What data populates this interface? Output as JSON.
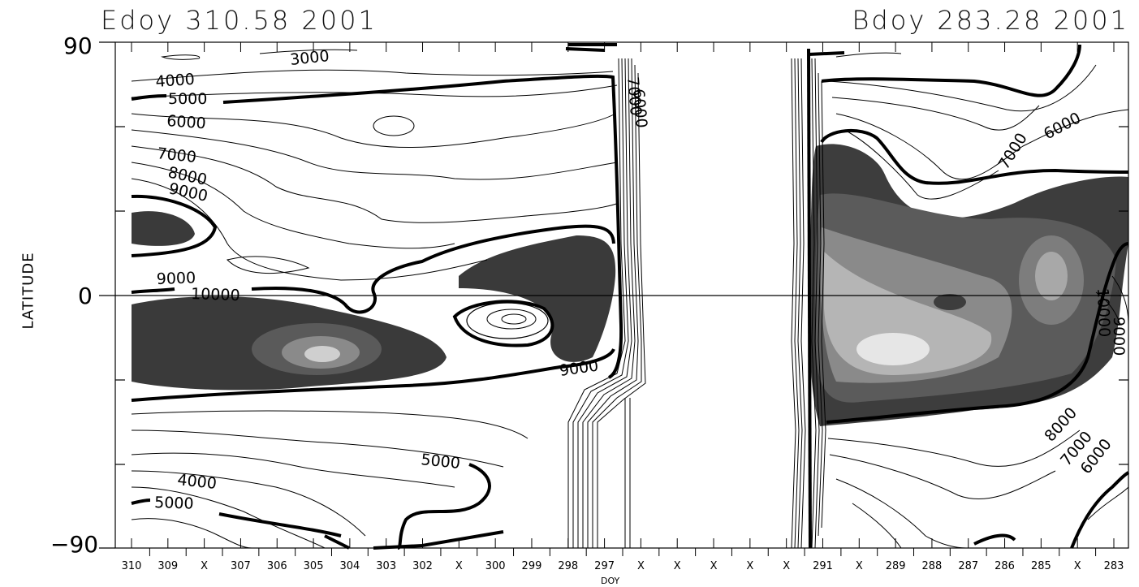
{
  "title_left": "Edoy 310.58 2001",
  "title_right": "Bdoy 283.28 2001",
  "chart_data": {
    "type": "heatmap",
    "subtype": "latitude-time contour plot with grey shading",
    "xlabel": "DOY",
    "ylabel": "LATITUDE",
    "x_tick_labels": [
      "310",
      "309",
      "X",
      "307",
      "306",
      "305",
      "304",
      "303",
      "302",
      "X",
      "300",
      "299",
      "298",
      "297",
      "X",
      "X",
      "X",
      "X",
      "X",
      "291",
      "X",
      "289",
      "288",
      "287",
      "286",
      "285",
      "X",
      "283"
    ],
    "y_ticks": [
      "90",
      "0",
      "−90"
    ],
    "ylim": [
      -90,
      90
    ],
    "grid": false,
    "contour_labels": [
      "3000",
      "4000",
      "5000",
      "6000",
      "7000",
      "8000",
      "9000",
      "9000",
      "10000",
      "9000",
      "5000",
      "4000",
      "5000",
      "7000",
      "6000",
      "6000",
      "7000",
      "8000",
      "7000",
      "6000",
      "10000",
      "9000"
    ]
  }
}
